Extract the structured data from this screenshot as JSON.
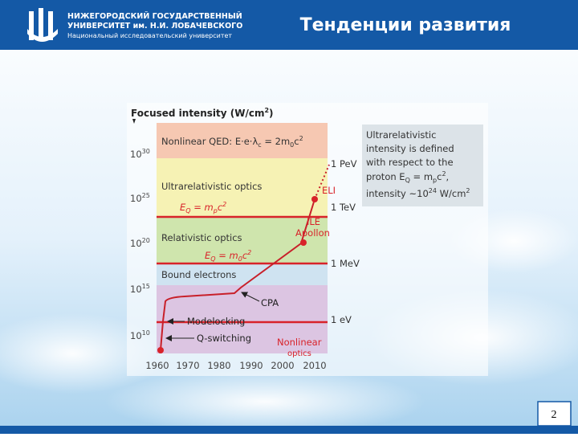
{
  "header": {
    "org": [
      "НИЖЕГОРОДСКИЙ ГОСУДАРСТВЕННЫЙ",
      "УНИВЕРСИТЕТ им. Н.И. ЛОБАЧЕВСКОГО",
      "Национальный исследовательский университет"
    ],
    "title": "Тенденции развития"
  },
  "figure": {
    "axis_title": [
      "Focused intensity (W/cm",
      "2",
      ")"
    ],
    "yticks": [
      [
        "10",
        "30"
      ],
      [
        "10",
        "25"
      ],
      [
        "10",
        "20"
      ],
      [
        "10",
        "15"
      ],
      [
        "10",
        "10"
      ]
    ],
    "xticks": [
      "1960",
      "1970",
      "1980",
      "1990",
      "2000",
      "2010"
    ],
    "bands": {
      "qed": [
        "Nonlinear QED: E·e·λ",
        "c",
        " = 2m",
        "0",
        "c",
        "2"
      ],
      "ultra": "Ultrarelativistic optics",
      "eq_p": [
        "E",
        "Q",
        " = m",
        "p",
        "c",
        "2"
      ],
      "rel": "Relativistic optics",
      "eq_0": [
        "E",
        "Q",
        " = m",
        "0",
        "c",
        "2"
      ],
      "bound": "Bound electrons"
    },
    "energies": [
      "1 PeV",
      "1 TeV",
      "1 MeV",
      "1 eV"
    ],
    "labels": {
      "eli": "ELI",
      "ile": [
        "ILE",
        "Apollon"
      ],
      "cpa": "CPA",
      "modelocking": "Modelocking",
      "qswitching": "Q-switching",
      "nonlinear": [
        "Nonlinear",
        "optics"
      ]
    },
    "info": [
      "Ultrarelativistic",
      "intensity is defined",
      "with respect to the",
      [
        "proton E",
        "Q",
        " = m",
        "p",
        "c",
        "2",
        ","
      ],
      [
        "intensity ~10",
        "24",
        " W/cm",
        "2"
      ]
    ]
  },
  "page_number": "2"
}
